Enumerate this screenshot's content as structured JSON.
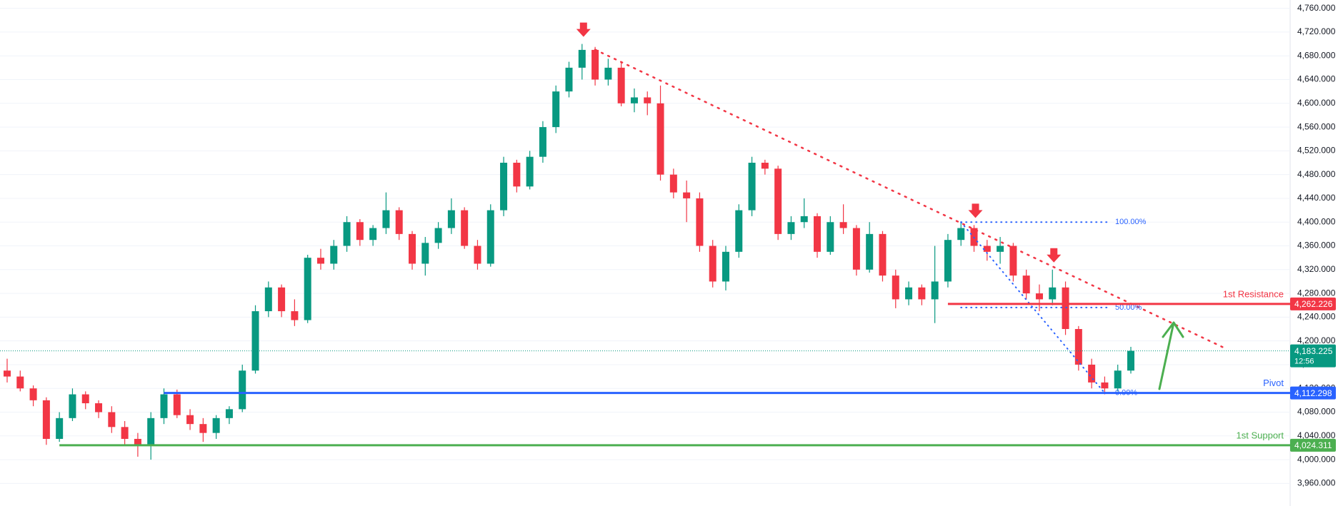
{
  "chart_data": {
    "type": "candlestick",
    "up_color": "#089981",
    "down_color": "#f23645",
    "open": [
      4150,
      4140,
      4120,
      4100,
      4035,
      4070,
      4110,
      4095,
      4080,
      4055,
      4035,
      4025,
      4070,
      4110,
      4075,
      4060,
      4045,
      4070,
      4085,
      4150,
      4250,
      4290,
      4250,
      4235,
      4340,
      4330,
      4360,
      4400,
      4370,
      4390,
      4420,
      4380,
      4330,
      4365,
      4390,
      4420,
      4360,
      4330,
      4420,
      4500,
      4460,
      4510,
      4560,
      4620,
      4660,
      4690,
      4640,
      4660,
      4600,
      4610,
      4600,
      4480,
      4450,
      4440,
      4360,
      4300,
      4350,
      4420,
      4500,
      4490,
      4380,
      4400,
      4410,
      4350,
      4400,
      4390,
      4320,
      4380,
      4310,
      4270,
      4290,
      4270,
      4300,
      4370,
      4390,
      4360,
      4350,
      4360,
      4310,
      4280,
      4270,
      4290,
      4220,
      4160,
      4130,
      4120,
      4150
    ],
    "high": [
      4170,
      4150,
      4125,
      4105,
      4080,
      4120,
      4115,
      4100,
      4090,
      4065,
      4045,
      4080,
      4120,
      4118,
      4085,
      4070,
      4075,
      4090,
      4160,
      4260,
      4300,
      4295,
      4270,
      4345,
      4355,
      4370,
      4410,
      4405,
      4395,
      4450,
      4425,
      4385,
      4375,
      4400,
      4440,
      4425,
      4370,
      4430,
      4510,
      4505,
      4520,
      4570,
      4630,
      4670,
      4700,
      4695,
      4675,
      4670,
      4625,
      4620,
      4630,
      4490,
      4470,
      4450,
      4370,
      4360,
      4430,
      4510,
      4505,
      4495,
      4410,
      4440,
      4415,
      4410,
      4430,
      4395,
      4400,
      4385,
      4320,
      4300,
      4295,
      4360,
      4380,
      4400,
      4395,
      4370,
      4375,
      4365,
      4320,
      4295,
      4320,
      4300,
      4225,
      4170,
      4140,
      4160,
      4190
    ],
    "low": [
      4130,
      4115,
      4090,
      4025,
      4030,
      4065,
      4085,
      4070,
      4045,
      4025,
      4005,
      4000,
      4060,
      4070,
      4050,
      4030,
      4035,
      4060,
      4080,
      4145,
      4240,
      4240,
      4225,
      4230,
      4320,
      4320,
      4350,
      4360,
      4360,
      4380,
      4370,
      4320,
      4310,
      4355,
      4380,
      4355,
      4320,
      4325,
      4410,
      4450,
      4455,
      4500,
      4550,
      4610,
      4640,
      4630,
      4630,
      4595,
      4585,
      4580,
      4470,
      4440,
      4400,
      4350,
      4290,
      4285,
      4340,
      4410,
      4480,
      4370,
      4370,
      4390,
      4340,
      4345,
      4380,
      4310,
      4315,
      4300,
      4255,
      4260,
      4260,
      4230,
      4290,
      4360,
      4350,
      4335,
      4330,
      4300,
      4270,
      4250,
      4260,
      4210,
      4150,
      4120,
      4110,
      4115,
      4145
    ],
    "close": [
      4140,
      4120,
      4100,
      4035,
      4070,
      4110,
      4095,
      4080,
      4055,
      4035,
      4025,
      4070,
      4110,
      4075,
      4060,
      4045,
      4070,
      4085,
      4150,
      4250,
      4290,
      4250,
      4235,
      4340,
      4330,
      4360,
      4400,
      4370,
      4390,
      4420,
      4380,
      4330,
      4365,
      4390,
      4420,
      4360,
      4330,
      4420,
      4500,
      4460,
      4510,
      4560,
      4620,
      4660,
      4690,
      4640,
      4660,
      4600,
      4610,
      4600,
      4480,
      4450,
      4440,
      4360,
      4300,
      4350,
      4420,
      4500,
      4490,
      4380,
      4400,
      4410,
      4350,
      4400,
      4390,
      4320,
      4380,
      4310,
      4270,
      4290,
      4270,
      4300,
      4370,
      4390,
      4360,
      4350,
      4360,
      4310,
      4280,
      4270,
      4290,
      4220,
      4160,
      4130,
      4120,
      4150,
      4183.225
    ],
    "ylim": [
      3922,
      4774
    ],
    "yticks": [
      {
        "value": 3960,
        "label": "3,960.000"
      },
      {
        "value": 4000,
        "label": "4,000.000"
      },
      {
        "value": 4040,
        "label": "4,040.000"
      },
      {
        "value": 4080,
        "label": "4,080.000"
      },
      {
        "value": 4120,
        "label": "4,120.000"
      },
      {
        "value": 4160,
        "label": "4,160.000"
      },
      {
        "value": 4200,
        "label": "4,200.000"
      },
      {
        "value": 4240,
        "label": "4,240.000"
      },
      {
        "value": 4280,
        "label": "4,280.000"
      },
      {
        "value": 4320,
        "label": "4,320.000"
      },
      {
        "value": 4360,
        "label": "4,360.000"
      },
      {
        "value": 4400,
        "label": "4,400.000"
      },
      {
        "value": 4440,
        "label": "4,440.000"
      },
      {
        "value": 4480,
        "label": "4,480.000"
      },
      {
        "value": 4520,
        "label": "4,520.000"
      },
      {
        "value": 4560,
        "label": "4,560.000"
      },
      {
        "value": 4600,
        "label": "4,600.000"
      },
      {
        "value": 4640,
        "label": "4,640.000"
      },
      {
        "value": 4680,
        "label": "4,680.000"
      },
      {
        "value": 4720,
        "label": "4,720.000"
      },
      {
        "value": 4760,
        "label": "4,760.000"
      }
    ],
    "grid": true,
    "levels": [
      {
        "name": "1st Resistance",
        "value": 4262.226,
        "label": "4,262.226",
        "color": "#f23645"
      },
      {
        "name": "Pivot",
        "value": 4112.298,
        "label": "4,112.298",
        "color": "#2962ff"
      },
      {
        "name": "1st Support",
        "value": 4024.311,
        "label": "4,024.311",
        "color": "#4caf50"
      }
    ],
    "last_price": {
      "value": 4183.225,
      "label": "4,183.225",
      "countdown": "12:56",
      "color": "#089981"
    },
    "fib": [
      {
        "value": 4400,
        "label": "100.00%"
      },
      {
        "value": 4256.149,
        "label": "50.00%"
      },
      {
        "value": 4112.298,
        "label": "0.00%"
      }
    ],
    "fib_color": "#2962ff",
    "trend_color": "#f23645"
  }
}
